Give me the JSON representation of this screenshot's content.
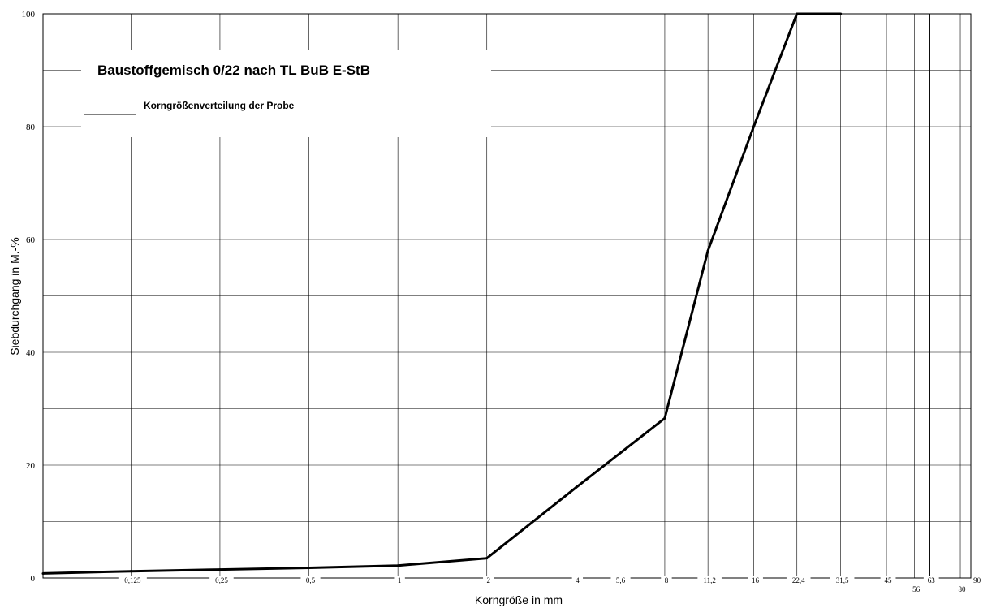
{
  "chart_data": {
    "type": "line",
    "title": "Baustoffgemisch 0/22 nach TL BuB E-StB",
    "xlabel": "Korngröße in mm",
    "ylabel": "Siebdurchgang in M.-%",
    "ylim": [
      0,
      100
    ],
    "y_ticks": [
      "0",
      "20",
      "40",
      "60",
      "80",
      "100"
    ],
    "x_ticks": [
      "0,125",
      "0,25",
      "0,5",
      "1",
      "2",
      "4",
      "5,6",
      "8",
      "11,2",
      "16",
      "22,4",
      "31,5",
      "45",
      "56",
      "63",
      "80",
      "90"
    ],
    "grid": true,
    "legend_position": "top-left",
    "series": [
      {
        "name": "Korngrößenverteilung der Probe",
        "x": [
          "0,063",
          "0,125",
          "0,25",
          "0,5",
          "1",
          "2",
          "4",
          "8",
          "11,2",
          "16",
          "22,4",
          "31,5"
        ],
        "values": [
          0.8,
          1.2,
          1.5,
          1.8,
          2.2,
          3.5,
          16,
          28.3,
          58,
          80,
          100,
          100
        ]
      }
    ]
  }
}
